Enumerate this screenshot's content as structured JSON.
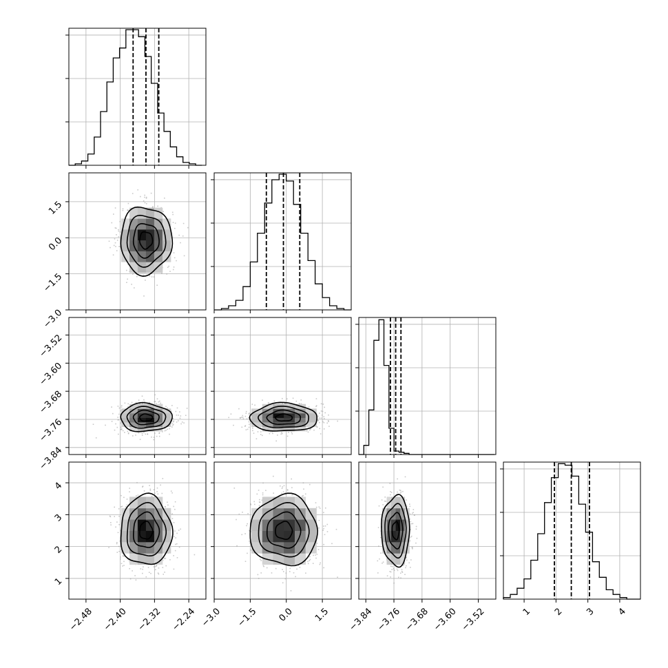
{
  "chart_data": {
    "type": "corner",
    "title": "",
    "grid": true,
    "parameters": [
      {
        "index": 0,
        "range": [
          -2.52,
          -2.2
        ],
        "ticks": [
          -2.48,
          -2.4,
          -2.32,
          -2.24
        ],
        "tick_labels": [
          "−2.48",
          "−2.40",
          "−2.32",
          "−2.24"
        ],
        "mean": -2.34,
        "std": 0.03,
        "quantiles": [
          -2.37,
          -2.34,
          -2.31
        ]
      },
      {
        "index": 1,
        "range": [
          -3.0,
          2.7
        ],
        "ticks": [
          -3.0,
          -1.5,
          0.0,
          1.5
        ],
        "tick_labels": [
          "−3.0",
          "−1.5",
          "0.0",
          "1.5"
        ],
        "mean": -0.1,
        "std": 0.7,
        "quantiles": [
          -0.83,
          -0.12,
          0.56
        ]
      },
      {
        "index": 2,
        "range": [
          -3.86,
          -3.47
        ],
        "ticks": [
          -3.84,
          -3.76,
          -3.68,
          -3.6,
          -3.52
        ],
        "tick_labels": [
          "−3.84",
          "−3.76",
          "−3.68",
          "−3.60",
          "−3.52"
        ],
        "mean": -3.755,
        "std": 0.02,
        "quantiles": [
          -3.77,
          -3.755,
          -3.74
        ]
      },
      {
        "index": 3,
        "range": [
          0.35,
          4.65
        ],
        "ticks": [
          1,
          2,
          3,
          4
        ],
        "tick_labels": [
          "1",
          "2",
          "3",
          "4"
        ],
        "mean": 2.5,
        "std": 0.55,
        "quantiles": [
          1.95,
          2.48,
          3.05
        ]
      }
    ],
    "histograms": [
      {
        "param": 0,
        "bin_edges_start": -2.52,
        "bin_width": 0.0148,
        "counts": [
          0,
          1,
          3,
          8,
          20,
          38,
          59,
          76,
          83,
          96,
          96,
          91,
          77,
          58,
          37,
          24,
          13,
          6,
          2,
          1,
          0
        ]
      },
      {
        "param": 1,
        "bin_edges_start": -3.0,
        "bin_width": 0.3,
        "counts": [
          0,
          1,
          3,
          7,
          17,
          35,
          56,
          78,
          95,
          99,
          94,
          77,
          56,
          36,
          19,
          9,
          3,
          1,
          0
        ]
      },
      {
        "param": 2,
        "bin_edges_start": -3.86,
        "bin_width": 0.0143,
        "counts": [
          0,
          8,
          39,
          100,
          118,
          78,
          23,
          3,
          2,
          1,
          0,
          0,
          0,
          0,
          0,
          0,
          0,
          0,
          0,
          0,
          0,
          0,
          0,
          0,
          0,
          0,
          0
        ]
      },
      {
        "param": 3,
        "bin_edges_start": 0.35,
        "bin_width": 0.215,
        "counts": [
          1,
          3,
          7,
          13,
          25,
          42,
          62,
          78,
          87,
          86,
          79,
          61,
          43,
          24,
          14,
          6,
          3,
          1,
          0,
          0
        ]
      }
    ],
    "correlation": 0.0,
    "contour_levels_sigma": [
      0.5,
      1.0,
      1.5,
      2.0
    ]
  }
}
